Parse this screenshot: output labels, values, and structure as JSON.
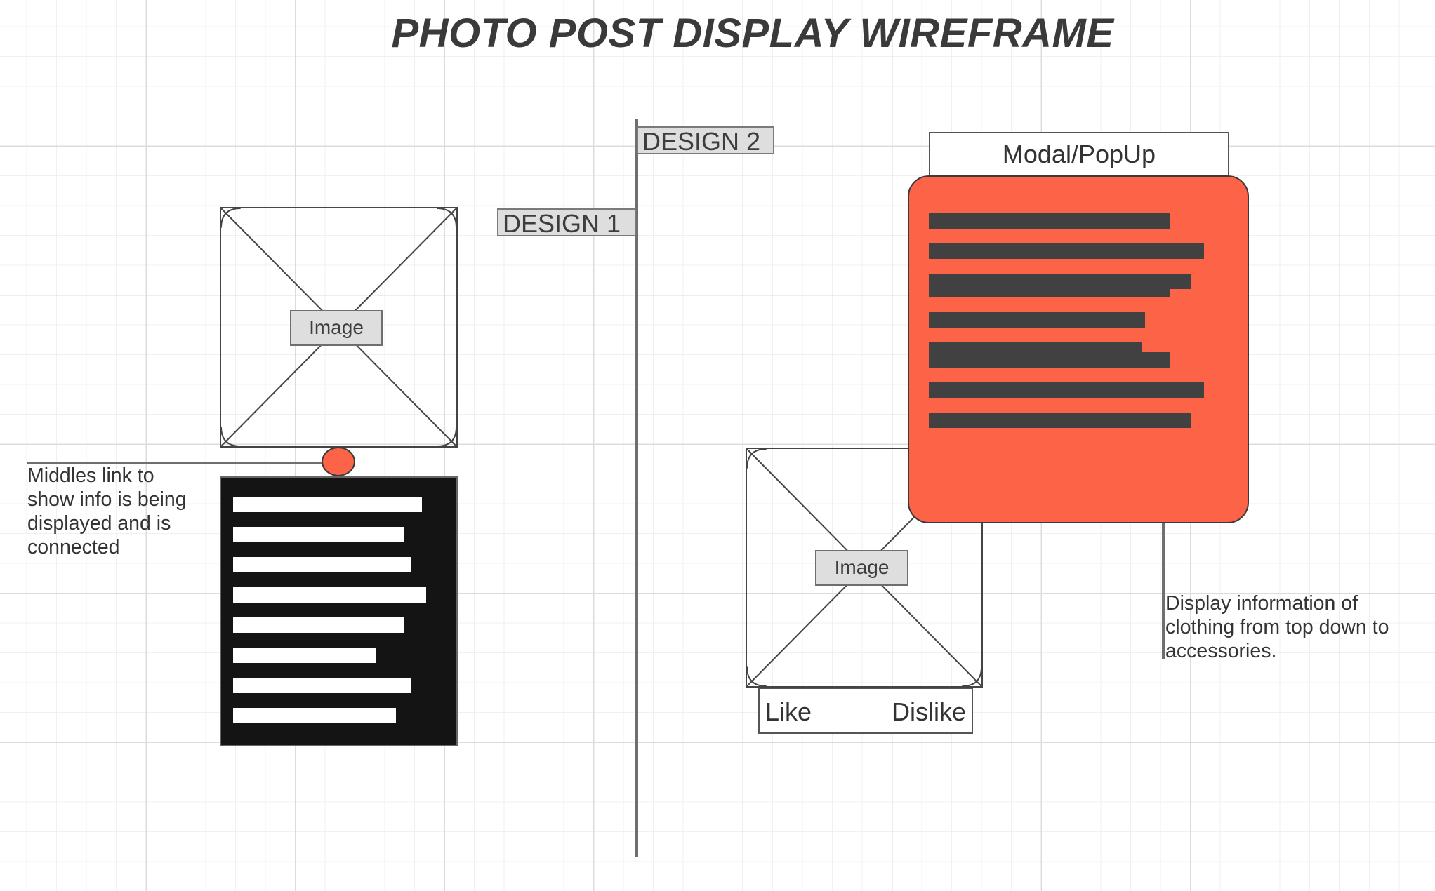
{
  "title": "PHOTO POST DISPLAY WIREFRAME",
  "tags": {
    "design1": "DESIGN 1",
    "design2": "DESIGN 2"
  },
  "design1": {
    "image_label": "Image",
    "annotation_lines": [
      "Middles link to",
      "show info is being",
      "displayed and is",
      "connected"
    ],
    "info_bar_fractions": [
      0.86,
      0.78,
      0.81,
      0.88,
      0.78,
      0.65,
      0.81,
      0.74
    ]
  },
  "design2": {
    "modal_tab_label": "Modal/PopUp",
    "image_label": "Image",
    "like_label": "Like",
    "dislike_label": "Dislike",
    "annotation_lines": [
      "Display information of",
      "clothing from top down to",
      "accessories."
    ],
    "modal_bar_groups": [
      [
        0.78,
        0.89,
        0.85
      ],
      [
        0.78,
        0.7,
        0.69
      ],
      [
        0.78,
        0.89,
        0.85
      ]
    ]
  },
  "colors": {
    "accent": "#fd6347",
    "dark_fill": "#141414",
    "dark_bar": "#414141",
    "label_fill": "#dedede",
    "line": "#6e6e6e"
  }
}
